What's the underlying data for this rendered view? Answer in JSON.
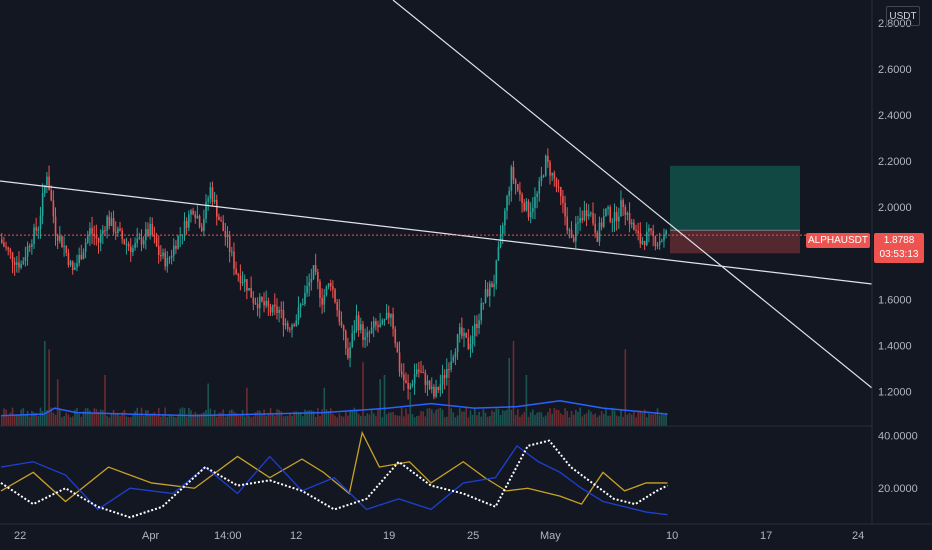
{
  "symbol": "ALPHAUSDT",
  "currency": "USDT",
  "price_label": "1.8788",
  "countdown": "03:53:13",
  "colors": {
    "bg": "#131722",
    "up": "#26a69a",
    "down": "#ef5350",
    "volume_ma": "#2962ff",
    "trendline": "#e0e3eb",
    "long_target": "#134e48",
    "long_stop": "#5b2a30",
    "osc_yellow": "#c9a227",
    "osc_blue": "#1f3fd1",
    "osc_white": "#ffffff"
  },
  "chart_data": [
    {
      "type": "candlestick",
      "title": "ALPHAUSDT",
      "x_ticks": [
        "22",
        "Apr",
        "14:00",
        "12",
        "19",
        "25",
        "May",
        "10",
        "17",
        "24"
      ],
      "y_ticks": [
        "1.2000",
        "1.4000",
        "1.6000",
        "1.8000",
        "2.0000",
        "2.2000",
        "2.4000",
        "2.6000",
        "2.8000"
      ],
      "ylim": [
        1.05,
        2.9
      ],
      "last_price": 1.8788,
      "path_points": [
        [
          0,
          1.86
        ],
        [
          6,
          1.78
        ],
        [
          10,
          1.75
        ],
        [
          14,
          1.85
        ],
        [
          18,
          1.92
        ],
        [
          22,
          2.15
        ],
        [
          26,
          1.9
        ],
        [
          30,
          1.83
        ],
        [
          34,
          1.72
        ],
        [
          38,
          1.8
        ],
        [
          42,
          1.9
        ],
        [
          46,
          1.85
        ],
        [
          50,
          1.95
        ],
        [
          54,
          1.9
        ],
        [
          58,
          1.85
        ],
        [
          62,
          1.82
        ],
        [
          66,
          1.86
        ],
        [
          70,
          1.9
        ],
        [
          74,
          1.8
        ],
        [
          78,
          1.76
        ],
        [
          82,
          1.85
        ],
        [
          86,
          1.92
        ],
        [
          90,
          2.0
        ],
        [
          94,
          1.92
        ],
        [
          98,
          2.08
        ],
        [
          102,
          1.95
        ],
        [
          106,
          1.85
        ],
        [
          110,
          1.72
        ],
        [
          114,
          1.68
        ],
        [
          118,
          1.6
        ],
        [
          122,
          1.58
        ],
        [
          126,
          1.55
        ],
        [
          130,
          1.55
        ],
        [
          134,
          1.48
        ],
        [
          138,
          1.52
        ],
        [
          142,
          1.62
        ],
        [
          146,
          1.72
        ],
        [
          150,
          1.6
        ],
        [
          154,
          1.68
        ],
        [
          158,
          1.52
        ],
        [
          162,
          1.35
        ],
        [
          166,
          1.52
        ],
        [
          170,
          1.42
        ],
        [
          174,
          1.48
        ],
        [
          178,
          1.48
        ],
        [
          182,
          1.55
        ],
        [
          186,
          1.3
        ],
        [
          190,
          1.2
        ],
        [
          194,
          1.3
        ],
        [
          198,
          1.25
        ],
        [
          202,
          1.18
        ],
        [
          206,
          1.25
        ],
        [
          210,
          1.35
        ],
        [
          214,
          1.45
        ],
        [
          218,
          1.4
        ],
        [
          222,
          1.5
        ],
        [
          226,
          1.62
        ],
        [
          230,
          1.68
        ],
        [
          234,
          1.92
        ],
        [
          238,
          2.15
        ],
        [
          242,
          2.05
        ],
        [
          246,
          1.98
        ],
        [
          250,
          2.05
        ],
        [
          254,
          2.2
        ],
        [
          258,
          2.12
        ],
        [
          262,
          2.0
        ],
        [
          266,
          1.85
        ],
        [
          270,
          1.95
        ],
        [
          274,
          2.0
        ],
        [
          278,
          1.88
        ],
        [
          282,
          1.98
        ],
        [
          286,
          1.95
        ],
        [
          290,
          2.02
        ],
        [
          294,
          1.92
        ],
        [
          298,
          1.85
        ],
        [
          302,
          1.88
        ],
        [
          306,
          1.85
        ],
        [
          310,
          1.88
        ]
      ],
      "volume_spikes": [
        [
          20,
          1.0
        ],
        [
          22,
          0.9
        ],
        [
          26,
          0.55
        ],
        [
          48,
          0.6
        ],
        [
          96,
          0.5
        ],
        [
          114,
          0.45
        ],
        [
          150,
          0.45
        ],
        [
          168,
          0.75
        ],
        [
          176,
          0.55
        ],
        [
          178,
          0.6
        ],
        [
          190,
          0.4
        ],
        [
          208,
          0.55
        ],
        [
          236,
          0.8
        ],
        [
          238,
          1.0
        ],
        [
          244,
          0.6
        ],
        [
          290,
          0.9
        ]
      ],
      "volume_ma": [
        [
          0,
          0.35
        ],
        [
          20,
          0.4
        ],
        [
          25,
          0.6
        ],
        [
          35,
          0.45
        ],
        [
          60,
          0.4
        ],
        [
          90,
          0.35
        ],
        [
          120,
          0.4
        ],
        [
          150,
          0.45
        ],
        [
          180,
          0.6
        ],
        [
          200,
          0.75
        ],
        [
          220,
          0.6
        ],
        [
          240,
          0.65
        ],
        [
          260,
          0.85
        ],
        [
          280,
          0.6
        ],
        [
          310,
          0.4
        ]
      ],
      "trendlines": [
        {
          "p1": [
            0,
            2.1
          ],
          "p2": [
            400,
            1.69
          ],
          "color": "#e0e3eb"
        },
        {
          "p1": [
            178,
            3.05
          ],
          "p2": [
            400,
            1.2
          ],
          "color": "#e0e3eb"
        }
      ],
      "position": {
        "side": "long",
        "entry": 1.9,
        "target": 2.18,
        "stop": 1.8,
        "from_bar": 312,
        "to_bar": 370
      }
    },
    {
      "type": "line",
      "y_ticks": [
        "20.0000",
        "40.0000"
      ],
      "ylim": [
        8,
        42
      ],
      "series": [
        {
          "color": "#c9a227",
          "points": [
            [
              0,
              19
            ],
            [
              15,
              26
            ],
            [
              30,
              15
            ],
            [
              50,
              28
            ],
            [
              70,
              22
            ],
            [
              90,
              20
            ],
            [
              110,
              32
            ],
            [
              125,
              24
            ],
            [
              140,
              31
            ],
            [
              150,
              26
            ],
            [
              162,
              18
            ],
            [
              168,
              41
            ],
            [
              176,
              28
            ],
            [
              190,
              30
            ],
            [
              200,
              22
            ],
            [
              215,
              30
            ],
            [
              225,
              24
            ],
            [
              235,
              19
            ],
            [
              245,
              20
            ],
            [
              260,
              17
            ],
            [
              270,
              14
            ],
            [
              280,
              26
            ],
            [
              290,
              19
            ],
            [
              300,
              22
            ],
            [
              310,
              22
            ]
          ]
        },
        {
          "color": "#1f3fd1",
          "points": [
            [
              0,
              28
            ],
            [
              15,
              30
            ],
            [
              30,
              25
            ],
            [
              45,
              12
            ],
            [
              60,
              20
            ],
            [
              80,
              18
            ],
            [
              95,
              28
            ],
            [
              110,
              18
            ],
            [
              125,
              32
            ],
            [
              140,
              19
            ],
            [
              155,
              24
            ],
            [
              170,
              12
            ],
            [
              185,
              16
            ],
            [
              200,
              12
            ],
            [
              215,
              22
            ],
            [
              230,
              24
            ],
            [
              240,
              36
            ],
            [
              250,
              30
            ],
            [
              260,
              26
            ],
            [
              270,
              20
            ],
            [
              280,
              15
            ],
            [
              290,
              13
            ],
            [
              300,
              11
            ],
            [
              310,
              10
            ]
          ]
        },
        {
          "color": "#ffffff",
          "points": [
            [
              0,
              22
            ],
            [
              15,
              14
            ],
            [
              30,
              20
            ],
            [
              45,
              13
            ],
            [
              60,
              9
            ],
            [
              75,
              13
            ],
            [
              95,
              28
            ],
            [
              110,
              21
            ],
            [
              125,
              23
            ],
            [
              140,
              19
            ],
            [
              155,
              12
            ],
            [
              170,
              16
            ],
            [
              185,
              30
            ],
            [
              200,
              21
            ],
            [
              215,
              18
            ],
            [
              230,
              13
            ],
            [
              245,
              36
            ],
            [
              255,
              38
            ],
            [
              265,
              28
            ],
            [
              275,
              22
            ],
            [
              285,
              16
            ],
            [
              295,
              14
            ],
            [
              305,
              19
            ],
            [
              310,
              21
            ]
          ]
        }
      ]
    }
  ]
}
